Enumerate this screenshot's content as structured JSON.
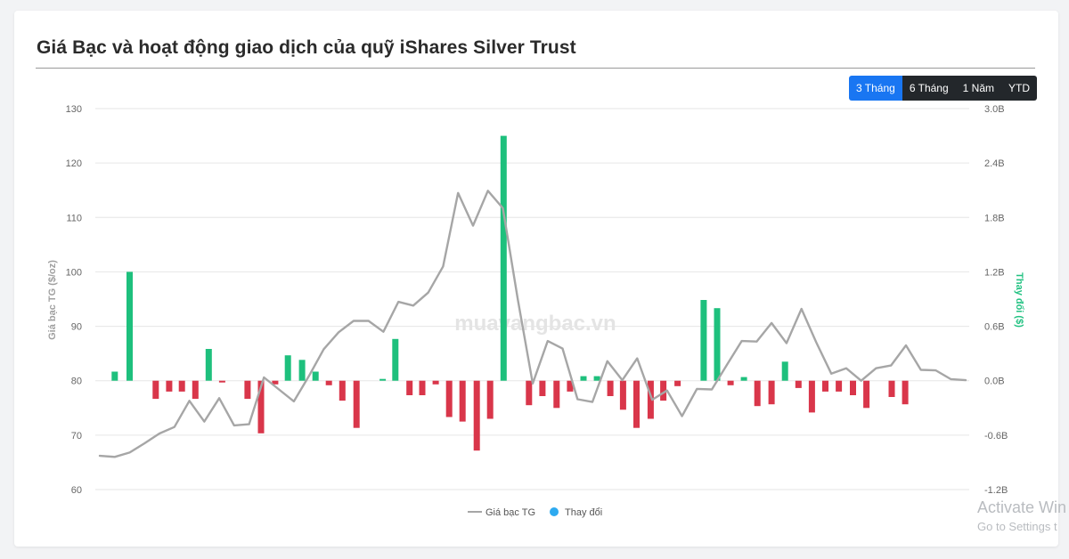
{
  "header": {
    "title": "Giá Bạc và hoạt động giao dịch của quỹ iShares Silver Trust"
  },
  "range_buttons": [
    {
      "label": "3 Tháng",
      "active": true
    },
    {
      "label": "6 Tháng",
      "active": false
    },
    {
      "label": "1 Năm",
      "active": false
    },
    {
      "label": "YTD",
      "active": false
    }
  ],
  "watermark": {
    "text": "muavangbac.vn"
  },
  "os_overlay": {
    "line1": "Activate Win",
    "line2": "Go to Settings t"
  },
  "colors": {
    "price_line": "#a6a6a6",
    "positive_bar": "#1ec07d",
    "negative_bar": "#d9364a",
    "legend_marker": "#2eaaf0",
    "right_axis_title": "#22c282",
    "left_axis_title": "#a0a0a0"
  },
  "chart_data": {
    "type": "bar+line",
    "title": "Giá Bạc và hoạt động giao dịch của quỹ iShares Silver Trust",
    "left_axis": {
      "label": "Giá bạc TG ($/oz)",
      "range": [
        60,
        130
      ],
      "ticks": [
        "130",
        "120",
        "110",
        "100",
        "90",
        "80",
        "70",
        "60"
      ],
      "tick_values": [
        130,
        120,
        110,
        100,
        90,
        80,
        70,
        60
      ]
    },
    "right_axis": {
      "label": "Thay đổi ($)",
      "range": [
        -1.2,
        3.0
      ],
      "unit": "B",
      "ticks": [
        "3.0B",
        "2.4B",
        "1.8B",
        "1.2B",
        "0.6B",
        "0.0B",
        "-0.6B",
        "-1.2B"
      ],
      "tick_values": [
        3.0,
        2.4,
        1.8,
        1.2,
        0.6,
        0.0,
        -0.6,
        -1.2
      ]
    },
    "grid": true,
    "legend": {
      "position": "bottom-center",
      "items": [
        "Giá bạc TG",
        "Thay đổi"
      ]
    },
    "series": [
      {
        "name": "Giá bạc TG",
        "type": "line",
        "axis": "left",
        "values": [
          66.2,
          66.0,
          66.8,
          68.5,
          70.3,
          71.5,
          76.3,
          72.5,
          76.8,
          71.8,
          72.0,
          80.6,
          78.4,
          76.2,
          80.8,
          85.8,
          88.9,
          91.0,
          91.0,
          89.0,
          94.5,
          93.8,
          96.2,
          101.0,
          114.5,
          108.5,
          114.9,
          111.7,
          95.0,
          79.5,
          87.3,
          85.9,
          76.6,
          76.1,
          83.6,
          80.1,
          84.1,
          76.5,
          78.2,
          73.5,
          78.5,
          78.4,
          82.9,
          87.3,
          87.2,
          90.6,
          86.9,
          93.2,
          87.0,
          81.3,
          82.3,
          80.0,
          82.3,
          82.8,
          86.5,
          82.0,
          81.9,
          80.3,
          80.1
        ]
      },
      {
        "name": "Thay đổi",
        "type": "bar",
        "axis": "right",
        "values": [
          0.1,
          1.2,
          -0.2,
          -0.12,
          -0.12,
          -0.2,
          0.35,
          -0.02,
          -0.2,
          -0.58,
          -0.04,
          0.28,
          0.23,
          0.1,
          -0.05,
          -0.22,
          -0.52,
          0.02,
          0.46,
          -0.16,
          -0.16,
          -0.04,
          -0.4,
          -0.45,
          -0.77,
          -0.42,
          2.7,
          -0.27,
          -0.17,
          -0.3,
          -0.12,
          0.05,
          0.05,
          -0.17,
          -0.32,
          -0.52,
          -0.42,
          -0.22,
          -0.06,
          0.89,
          0.8,
          -0.05,
          0.04,
          -0.28,
          -0.26,
          0.21,
          -0.08,
          -0.35,
          -0.12,
          -0.12,
          -0.16,
          -0.3,
          -0.18,
          -0.26
        ]
      }
    ],
    "bar_x_index": [
      1,
      2,
      3.75,
      4.65,
      5.5,
      6.4,
      7.3,
      8.2,
      9.9,
      10.8,
      11.75,
      12.6,
      13.55,
      14.45,
      15.35,
      16.25,
      17.2,
      18.95,
      19.8,
      20.75,
      21.6,
      22.5,
      23.4,
      24.3,
      25.25,
      26.15,
      27.05,
      28.75,
      29.65,
      30.6,
      31.5,
      32.4,
      33.3,
      34.2,
      35.05,
      35.95,
      36.9,
      37.75,
      38.7,
      40.45,
      41.35,
      42.25,
      43.15,
      44.05,
      45.0,
      45.9,
      46.8,
      47.7,
      48.6,
      49.5,
      50.45,
      51.35,
      53.05,
      53.95
    ],
    "x_count": 59
  }
}
